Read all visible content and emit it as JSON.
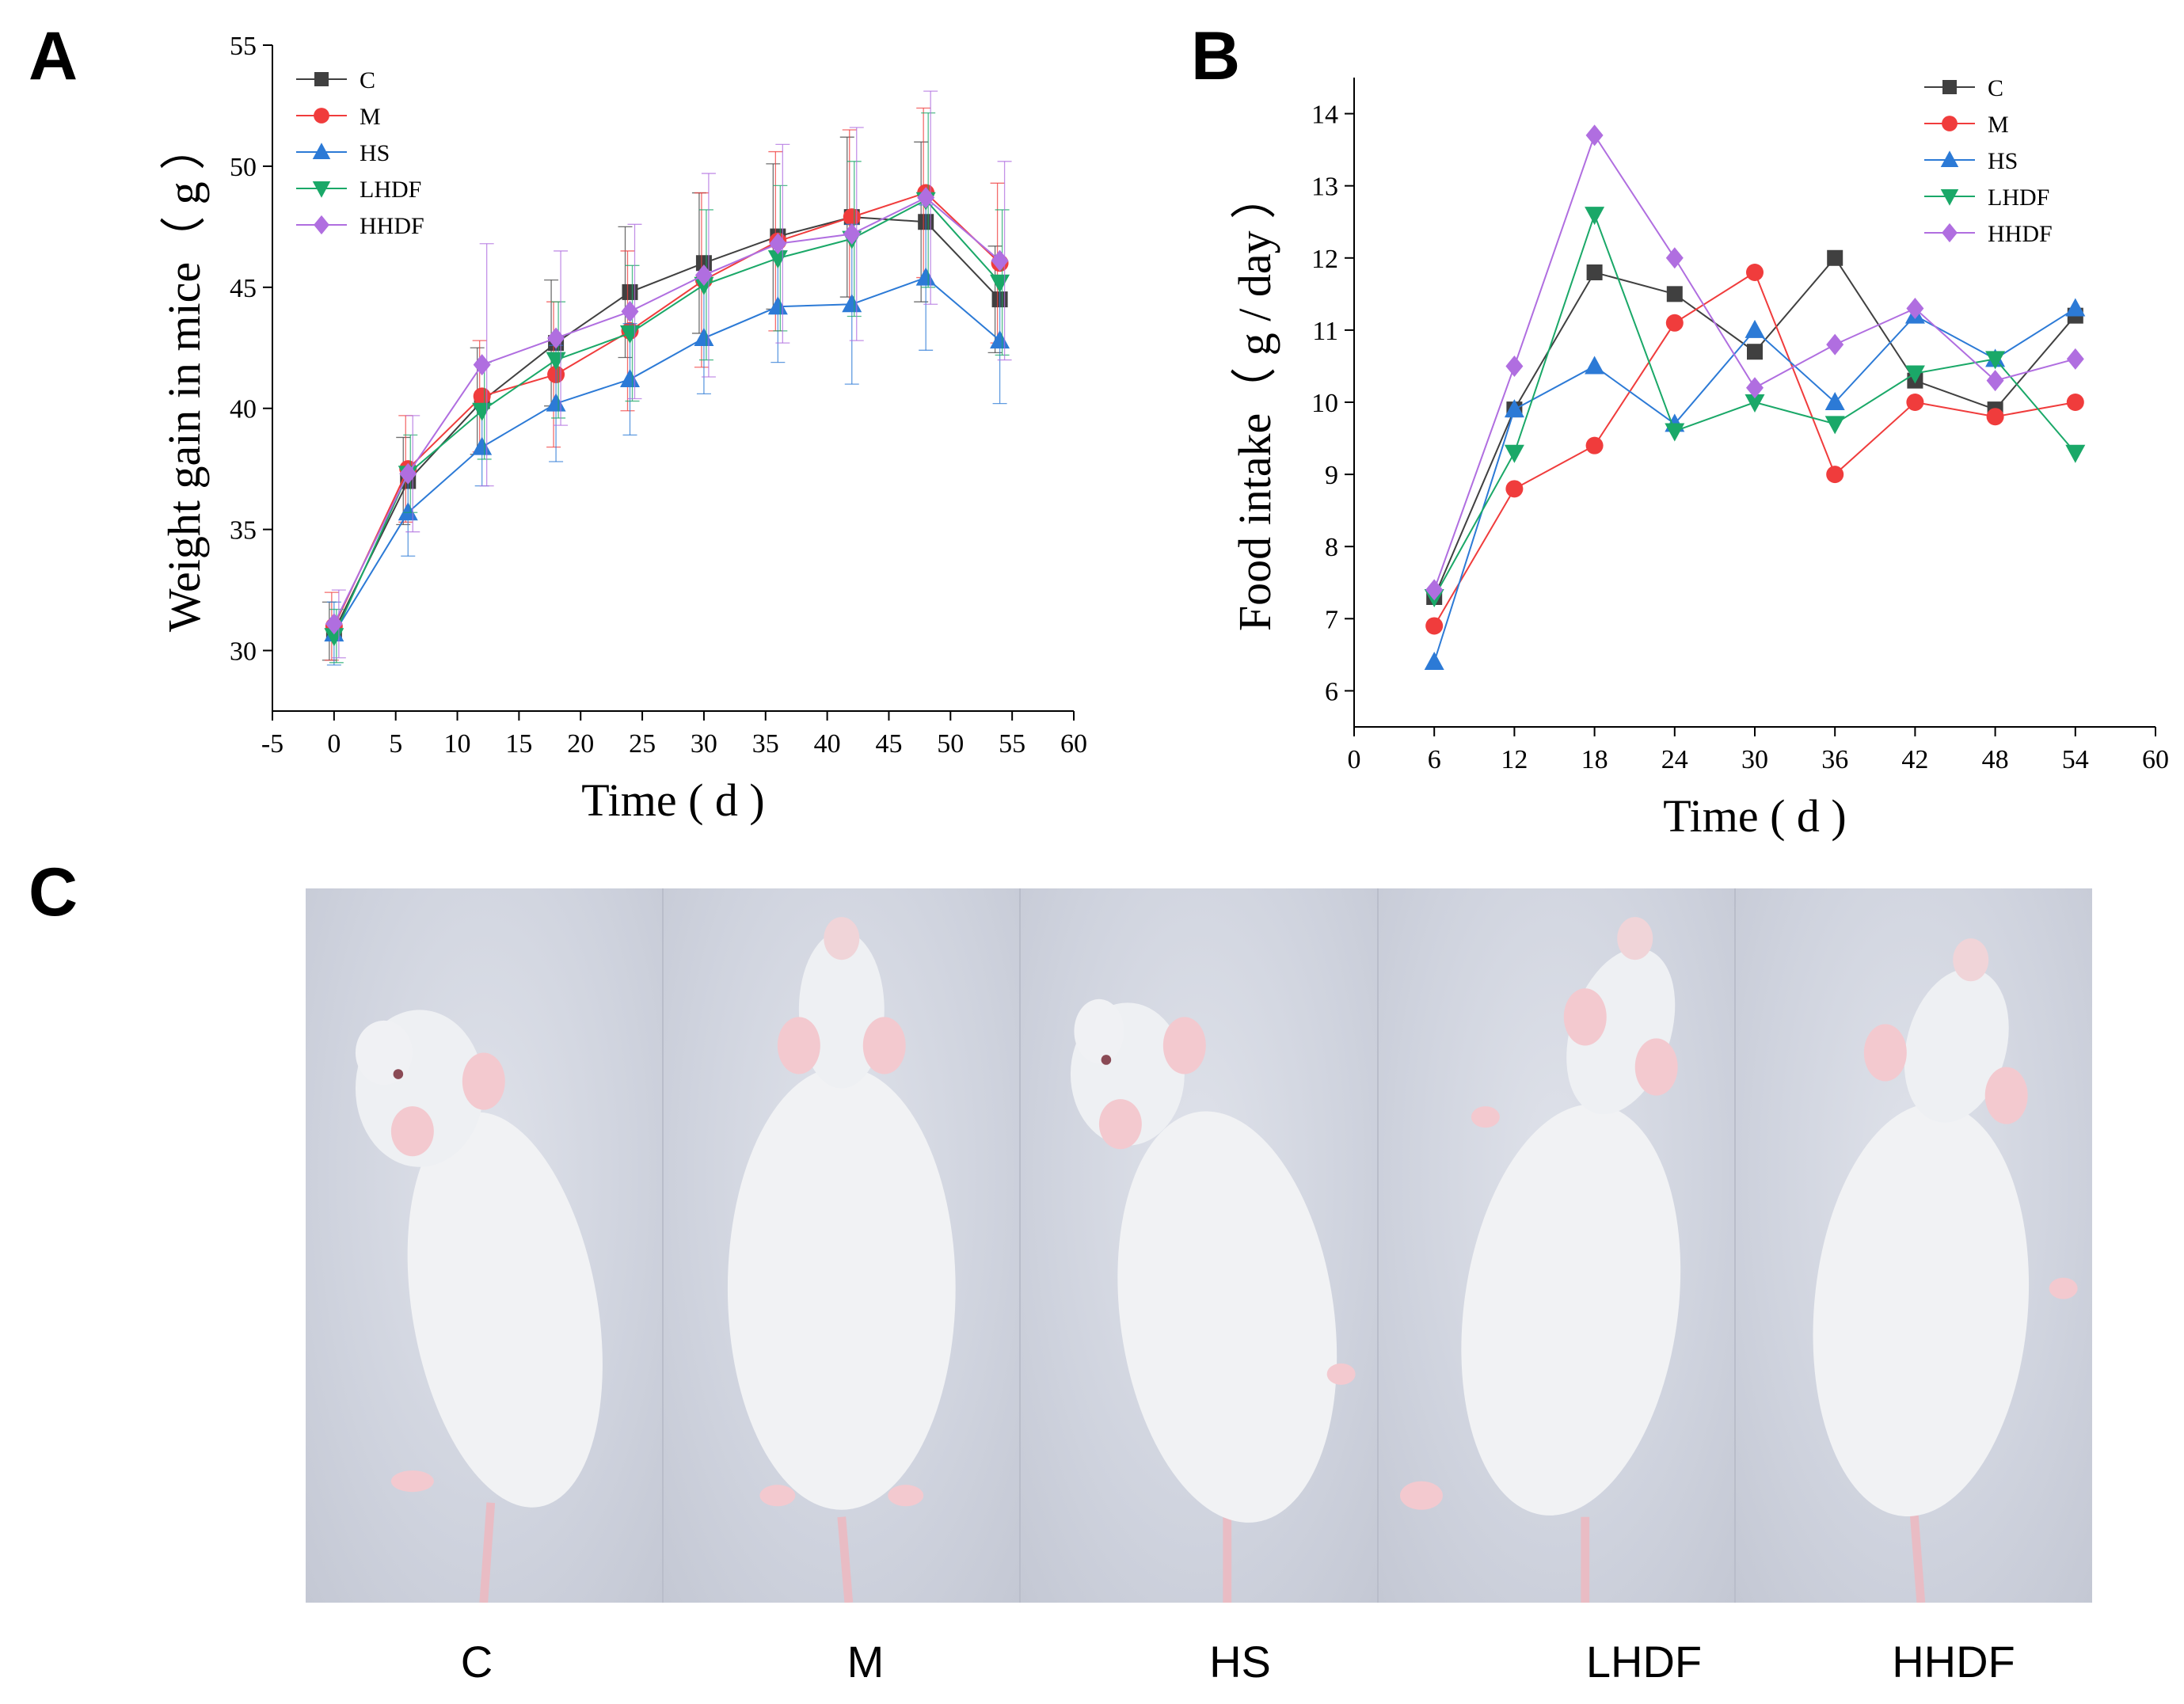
{
  "panels": {
    "a": "A",
    "b": "B",
    "c": "C"
  },
  "colors": {
    "C": "#404040",
    "M": "#f03c3c",
    "HS": "#2c7ad6",
    "LHDF": "#1aa868",
    "HHDF": "#b06ee0"
  },
  "chart_data": [
    {
      "type": "line",
      "ylabel": "Weight gain in mice（ g ）",
      "xlabel": "Time ( d )",
      "xlim": [
        -5,
        60
      ],
      "ylim": [
        27.5,
        55
      ],
      "xticks": [
        -5,
        0,
        5,
        10,
        15,
        20,
        25,
        30,
        35,
        40,
        45,
        50,
        55,
        60
      ],
      "yticks": [
        30,
        35,
        40,
        45,
        50,
        55
      ],
      "legend_position": "top-left",
      "error_bars": true,
      "x": [
        0,
        6,
        12,
        18,
        24,
        30,
        36,
        42,
        48,
        54
      ],
      "series": [
        {
          "name": "C",
          "marker": "square",
          "values": [
            30.8,
            37.0,
            40.3,
            42.7,
            44.8,
            46.0,
            47.1,
            47.9,
            47.7,
            44.5
          ],
          "errors": [
            1.2,
            1.8,
            2.2,
            2.6,
            2.7,
            2.9,
            3.0,
            3.3,
            3.3,
            2.2
          ]
        },
        {
          "name": "M",
          "marker": "circle",
          "values": [
            31.0,
            37.5,
            40.5,
            41.4,
            43.2,
            45.3,
            46.9,
            47.9,
            48.9,
            46.0
          ],
          "errors": [
            1.4,
            2.2,
            2.3,
            3.0,
            3.3,
            3.6,
            3.7,
            3.6,
            3.5,
            3.3
          ]
        },
        {
          "name": "HS",
          "marker": "triangle-up",
          "values": [
            30.7,
            35.7,
            38.4,
            40.2,
            41.2,
            42.9,
            44.2,
            44.3,
            45.4,
            42.8
          ],
          "errors": [
            1.3,
            1.8,
            1.6,
            2.4,
            2.3,
            2.3,
            2.3,
            3.3,
            3.0,
            2.6
          ]
        },
        {
          "name": "LHDF",
          "marker": "triangle-down",
          "values": [
            30.6,
            37.3,
            39.9,
            42.0,
            43.1,
            45.1,
            46.2,
            47.0,
            48.6,
            45.2
          ],
          "errors": [
            1.1,
            1.6,
            2.0,
            2.4,
            2.8,
            3.1,
            3.0,
            3.2,
            3.6,
            3.0
          ]
        },
        {
          "name": "HHDF",
          "marker": "diamond",
          "values": [
            31.1,
            37.3,
            41.8,
            42.9,
            44.0,
            45.5,
            46.8,
            47.2,
            48.7,
            46.1
          ],
          "errors": [
            1.4,
            2.4,
            5.0,
            3.6,
            3.6,
            4.2,
            4.1,
            4.4,
            4.4,
            4.1
          ]
        }
      ]
    },
    {
      "type": "line",
      "ylabel": "Food intake（ g / day ）",
      "xlabel": "Time ( d )",
      "xlim": [
        0,
        60
      ],
      "ylim": [
        5.5,
        14.5
      ],
      "xticks": [
        0,
        6,
        12,
        18,
        24,
        30,
        36,
        42,
        48,
        54,
        60
      ],
      "yticks": [
        6,
        7,
        8,
        9,
        10,
        11,
        12,
        13,
        14
      ],
      "legend_position": "top-right",
      "x": [
        6,
        12,
        18,
        24,
        30,
        36,
        42,
        48,
        54
      ],
      "series": [
        {
          "name": "C",
          "marker": "square",
          "values": [
            7.3,
            9.9,
            11.8,
            11.5,
            10.7,
            12.0,
            10.3,
            9.9,
            11.2
          ]
        },
        {
          "name": "M",
          "marker": "circle",
          "values": [
            6.9,
            8.8,
            9.4,
            11.1,
            11.8,
            9.0,
            10.0,
            9.8,
            10.0
          ]
        },
        {
          "name": "HS",
          "marker": "triangle-up",
          "values": [
            6.4,
            9.9,
            10.5,
            9.7,
            11.0,
            10.0,
            11.2,
            10.6,
            11.3
          ]
        },
        {
          "name": "LHDF",
          "marker": "triangle-down",
          "values": [
            7.3,
            9.3,
            12.6,
            9.6,
            10.0,
            9.7,
            10.4,
            10.6,
            9.3
          ]
        },
        {
          "name": "HHDF",
          "marker": "diamond",
          "values": [
            7.4,
            10.5,
            13.7,
            12.0,
            10.2,
            10.8,
            11.3,
            10.3,
            10.6
          ]
        }
      ]
    }
  ],
  "photos": {
    "labels": [
      "C",
      "M",
      "HS",
      "LHDF",
      "HHDF"
    ]
  }
}
